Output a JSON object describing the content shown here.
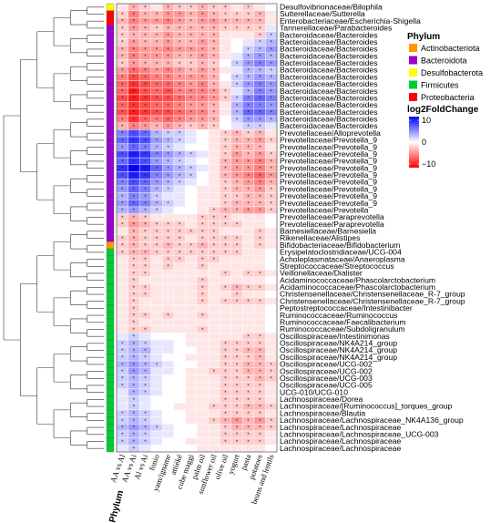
{
  "chart_data": {
    "type": "heatmap",
    "color_scale": {
      "min": -10,
      "mid": 0,
      "max": 10,
      "low_color": "#ff0000",
      "mid_color": "#ffffff",
      "high_color": "#0000ff"
    },
    "phylum_colors": {
      "Actinobacteriota": "#ff9900",
      "Bacteroidota": "#9900cc",
      "Desulfobacterota": "#ffff00",
      "Firmicutes": "#00cc33",
      "Proteobacteria": "#ff0000"
    },
    "columns": [
      "AA vs Al",
      "AA vs Ai",
      "Al vs Ai",
      "fonio",
      "yam/igname",
      "attiéké",
      "cube maggi",
      "palm oil",
      "sunflower oil",
      "olive oil",
      "yogurt",
      "pasta",
      "potatoes",
      "beans and lentils"
    ],
    "rows": [
      {
        "label": "Desulfovibrionaceae/Bilophila",
        "phylum": "Desulfobacterota"
      },
      {
        "label": "Sutterellaceae/Sutterella",
        "phylum": "Proteobacteria"
      },
      {
        "label": "Enterobacteriaceae/Escherichia-Shigella",
        "phylum": "Proteobacteria"
      },
      {
        "label": "Tannerellaceae/Parabacteroides",
        "phylum": "Bacteroidota"
      },
      {
        "label": "Bacteroidaceae/Bacteroides",
        "phylum": "Bacteroidota"
      },
      {
        "label": "Bacteroidaceae/Bacteroides",
        "phylum": "Bacteroidota"
      },
      {
        "label": "Bacteroidaceae/Bacteroides",
        "phylum": "Bacteroidota"
      },
      {
        "label": "Bacteroidaceae/Bacteroides",
        "phylum": "Bacteroidota"
      },
      {
        "label": "Bacteroidaceae/Bacteroides",
        "phylum": "Bacteroidota"
      },
      {
        "label": "Bacteroidaceae/Bacteroides",
        "phylum": "Bacteroidota"
      },
      {
        "label": "Bacteroidaceae/Bacteroides",
        "phylum": "Bacteroidota"
      },
      {
        "label": "Bacteroidaceae/Bacteroides",
        "phylum": "Bacteroidota"
      },
      {
        "label": "Bacteroidaceae/Bacteroides",
        "phylum": "Bacteroidota"
      },
      {
        "label": "Bacteroidaceae/Bacteroides",
        "phylum": "Bacteroidota"
      },
      {
        "label": "Bacteroidaceae/Bacteroides",
        "phylum": "Bacteroidota"
      },
      {
        "label": "Bacteroidaceae/Bacteroides",
        "phylum": "Bacteroidota"
      },
      {
        "label": "Bacteroidaceae/Bacteroides",
        "phylum": "Bacteroidota"
      },
      {
        "label": "Bacteroidaceae/Bacteroides",
        "phylum": "Bacteroidota"
      },
      {
        "label": "Prevotellaceae/Alloprevotella",
        "phylum": "Bacteroidota"
      },
      {
        "label": "Prevotellaceae/Prevotella_9",
        "phylum": "Bacteroidota"
      },
      {
        "label": "Prevotellaceae/Prevotella_9",
        "phylum": "Bacteroidota"
      },
      {
        "label": "Prevotellaceae/Prevotella_9",
        "phylum": "Bacteroidota"
      },
      {
        "label": "Prevotellaceae/Prevotella_9",
        "phylum": "Bacteroidota"
      },
      {
        "label": "Prevotellaceae/Prevotella_9",
        "phylum": "Bacteroidota"
      },
      {
        "label": "Prevotellaceae/Prevotella_9",
        "phylum": "Bacteroidota"
      },
      {
        "label": "Prevotellaceae/Prevotella_9",
        "phylum": "Bacteroidota"
      },
      {
        "label": "Prevotellaceae/Prevotella_9",
        "phylum": "Bacteroidota"
      },
      {
        "label": "Prevotellaceae/Prevotella_9",
        "phylum": "Bacteroidota"
      },
      {
        "label": "Prevotellaceae/Prevotella_9",
        "phylum": "Bacteroidota"
      },
      {
        "label": "Prevotellaceae/Prevotella",
        "phylum": "Bacteroidota"
      },
      {
        "label": "Prevotellaceae/Paraprevotella",
        "phylum": "Bacteroidota"
      },
      {
        "label": "Prevotellaceae/Paraprevotella",
        "phylum": "Bacteroidota"
      },
      {
        "label": "Barnesiellaceae/Barnesiella",
        "phylum": "Bacteroidota"
      },
      {
        "label": "Rikenellaceae/Alistipes",
        "phylum": "Bacteroidota"
      },
      {
        "label": "Bifidobacteriaceae/Bifidobacterium",
        "phylum": "Actinobacteriota"
      },
      {
        "label": "Erysipelatoclostridiaceae/UCG-004",
        "phylum": "Firmicutes"
      },
      {
        "label": "Acholeplasmataceae/Anaeroplasma",
        "phylum": "Firmicutes"
      },
      {
        "label": "Streptococcaceae/Streptococcus",
        "phylum": "Firmicutes"
      },
      {
        "label": "Veillonellaceae/Dialister",
        "phylum": "Firmicutes"
      },
      {
        "label": "Acidaminococcaceae/Phascolarctobacterium",
        "phylum": "Firmicutes"
      },
      {
        "label": "Acidaminococcaceae/Phascolarctobacterium",
        "phylum": "Firmicutes"
      },
      {
        "label": "Christensenellaceae/Christensenellaceae_R-7_group",
        "phylum": "Firmicutes"
      },
      {
        "label": "Christensenellaceae/Christensenellaceae_R-7_group",
        "phylum": "Firmicutes"
      },
      {
        "label": "Peptostreptococcaceae/Intestinibacter",
        "phylum": "Firmicutes"
      },
      {
        "label": "Ruminococcaceae/Ruminococcus",
        "phylum": "Firmicutes"
      },
      {
        "label": "Ruminococcaceae/Faecalibacterium",
        "phylum": "Firmicutes"
      },
      {
        "label": "Ruminococcaceae/Subdoligranulum",
        "phylum": "Firmicutes"
      },
      {
        "label": "Oscillospiraceae/Intestinimonas",
        "phylum": "Firmicutes"
      },
      {
        "label": "Oscillospiraceae/NK4A214_group",
        "phylum": "Firmicutes"
      },
      {
        "label": "Oscillospiraceae/NK4A214_group",
        "phylum": "Firmicutes"
      },
      {
        "label": "Oscillospiraceae/NK4A214_group",
        "phylum": "Firmicutes"
      },
      {
        "label": "Oscillospiraceae/UCG-002",
        "phylum": "Firmicutes"
      },
      {
        "label": "Oscillospiraceae/UCG-002",
        "phylum": "Firmicutes"
      },
      {
        "label": "Oscillospiraceae/UCG-003",
        "phylum": "Firmicutes"
      },
      {
        "label": "Oscillospiraceae/UCG-005",
        "phylum": "Firmicutes"
      },
      {
        "label": "UCG-010/UCG-010",
        "phylum": "Firmicutes"
      },
      {
        "label": "Lachnospiraceae/Dorea",
        "phylum": "Firmicutes"
      },
      {
        "label": "Lachnospiraceae/[Ruminococcus]_torques_group",
        "phylum": "Firmicutes"
      },
      {
        "label": "Lachnospiraceae/Blautia",
        "phylum": "Firmicutes"
      },
      {
        "label": "Lachnospiraceae/Lachnospiraceae_NK4A136_group",
        "phylum": "Firmicutes"
      },
      {
        "label": "Lachnospiraceae/Lachnospiraceae",
        "phylum": "Firmicutes"
      },
      {
        "label": "Lachnospiraceae/Lachnospiraceae_UCG-003",
        "phylum": "Firmicutes"
      },
      {
        "label": "Lachnospiraceae/Lachnospiraceae",
        "phylum": "Firmicutes"
      },
      {
        "label": "Lachnospiraceae/Lachnospiraceae",
        "phylum": "Firmicutes"
      }
    ],
    "values": [
      [
        -1,
        -3,
        -2,
        -1,
        -3,
        -2,
        -2,
        -3,
        -2,
        -2,
        -1,
        -2,
        -1,
        0
      ],
      [
        -2,
        -5,
        -3,
        -3,
        -4,
        -4,
        -3,
        -4,
        -3,
        -2,
        -2,
        -2,
        -3,
        -1
      ],
      [
        -3,
        -5,
        -4,
        -4,
        -5,
        -4,
        -3,
        -4,
        -4,
        -3,
        -3,
        -3,
        -3,
        -1
      ],
      [
        -2,
        -4,
        -3,
        -2,
        -3,
        -3,
        -3,
        -3,
        -3,
        -2,
        -2,
        -2,
        -2,
        1
      ],
      [
        -2,
        -3,
        -3,
        -3,
        -4,
        -3,
        -3,
        -3,
        -3,
        -1,
        -1,
        -1,
        -2,
        2
      ],
      [
        -2,
        -4,
        -3,
        -3,
        -4,
        -3,
        -3,
        -4,
        -3,
        -1,
        0,
        1,
        2,
        3
      ],
      [
        -3,
        -5,
        -4,
        -4,
        -5,
        -4,
        -4,
        -4,
        -3,
        -1,
        0,
        2,
        3,
        4
      ],
      [
        -3,
        -5,
        -4,
        -4,
        -4,
        -3,
        -3,
        -4,
        -3,
        -1,
        1,
        3,
        4,
        3
      ],
      [
        -2,
        -4,
        -3,
        -3,
        -3,
        -2,
        -2,
        -3,
        -2,
        0,
        2,
        4,
        5,
        4
      ],
      [
        -4,
        -6,
        -5,
        -4,
        -5,
        -4,
        -3,
        -4,
        -3,
        -1,
        1,
        3,
        3,
        2
      ],
      [
        -5,
        -7,
        -6,
        -5,
        -5,
        -4,
        -4,
        -4,
        -3,
        0,
        2,
        3,
        4,
        3
      ],
      [
        -6,
        -8,
        -7,
        -6,
        -6,
        -5,
        -4,
        -5,
        -3,
        -1,
        2,
        4,
        5,
        4
      ],
      [
        -6,
        -9,
        -7,
        -6,
        -7,
        -5,
        -5,
        -5,
        -4,
        -2,
        1,
        3,
        5,
        4
      ],
      [
        -7,
        -9,
        -8,
        -7,
        -7,
        -6,
        -5,
        -5,
        -4,
        -2,
        2,
        5,
        6,
        5
      ],
      [
        -6,
        -8,
        -7,
        -6,
        -6,
        -5,
        -4,
        -4,
        -3,
        -1,
        3,
        5,
        5,
        4
      ],
      [
        -7,
        -9,
        -8,
        -7,
        -7,
        -6,
        -5,
        -5,
        -3,
        -1,
        3,
        6,
        6,
        5
      ],
      [
        -5,
        -8,
        -6,
        -5,
        -6,
        -5,
        -4,
        -4,
        -3,
        0,
        2,
        4,
        4,
        3
      ],
      [
        -3,
        -5,
        -4,
        -3,
        -4,
        -3,
        -2,
        -3,
        -2,
        0,
        1,
        2,
        2,
        1
      ],
      [
        5,
        7,
        6,
        3,
        2,
        2,
        1,
        0,
        -1,
        -2,
        -3,
        -2,
        -3,
        -1
      ],
      [
        6,
        8,
        7,
        4,
        3,
        2,
        1,
        0,
        -1,
        -2,
        -3,
        -3,
        -4,
        -2
      ],
      [
        4,
        6,
        5,
        3,
        2,
        1,
        0,
        0,
        -1,
        -2,
        -3,
        -3,
        -3,
        -1
      ],
      [
        7,
        9,
        8,
        5,
        4,
        3,
        2,
        1,
        -1,
        -2,
        -4,
        -3,
        -4,
        -2
      ],
      [
        6,
        8,
        7,
        4,
        3,
        2,
        1,
        0,
        -1,
        -3,
        -4,
        -4,
        -5,
        -3
      ],
      [
        8,
        10,
        9,
        6,
        4,
        3,
        2,
        1,
        -1,
        -3,
        -4,
        -4,
        -5,
        -3
      ],
      [
        7,
        9,
        8,
        5,
        4,
        3,
        2,
        0,
        -1,
        -3,
        -4,
        -5,
        -6,
        -4
      ],
      [
        5,
        7,
        6,
        4,
        3,
        2,
        1,
        0,
        -1,
        -2,
        -3,
        -4,
        -5,
        -3
      ],
      [
        4,
        6,
        5,
        3,
        2,
        1,
        0,
        -1,
        -1,
        -2,
        -3,
        -3,
        -4,
        -2
      ],
      [
        3,
        5,
        4,
        2,
        1,
        1,
        0,
        -1,
        -1,
        -2,
        -2,
        -3,
        -3,
        -2
      ],
      [
        4,
        6,
        5,
        3,
        2,
        1,
        0,
        -1,
        -1,
        -2,
        -3,
        -3,
        -3,
        -2
      ],
      [
        3,
        4,
        3,
        2,
        1,
        0,
        0,
        -1,
        -2,
        -3,
        -3,
        -4,
        -4,
        -2
      ],
      [
        -2,
        -3,
        -2,
        -1,
        -1,
        -1,
        -1,
        -2,
        -2,
        -2,
        -1,
        -1,
        -1,
        0
      ],
      [
        -2,
        -4,
        -3,
        -2,
        -2,
        -2,
        -1,
        -2,
        -2,
        -2,
        -2,
        -1,
        -1,
        0
      ],
      [
        -1,
        -3,
        -2,
        -2,
        -2,
        -2,
        -2,
        -2,
        -2,
        -1,
        -1,
        -1,
        -2,
        -1
      ],
      [
        -2,
        -3,
        -2,
        -2,
        -2,
        -2,
        -1,
        -2,
        -2,
        -2,
        -2,
        -1,
        -2,
        -1
      ],
      [
        -2,
        -3,
        -2,
        -2,
        -3,
        -2,
        -2,
        -3,
        -2,
        -2,
        -2,
        -1,
        -2,
        -1
      ],
      [
        -2,
        -3,
        -3,
        -2,
        -2,
        -2,
        -2,
        -2,
        -2,
        -2,
        -2,
        -1,
        -1,
        0
      ],
      [
        -1,
        -2,
        -2,
        -1,
        -2,
        -2,
        -1,
        -2,
        -2,
        -1,
        -1,
        -1,
        -1,
        0
      ],
      [
        -1,
        -2,
        -2,
        -1,
        -2,
        -1,
        -1,
        -2,
        -1,
        -1,
        -1,
        -1,
        -1,
        0
      ],
      [
        -1,
        -2,
        -2,
        -1,
        -1,
        -1,
        -1,
        -1,
        -1,
        -2,
        -1,
        -2,
        -2,
        -1
      ],
      [
        -1,
        -2,
        -1,
        -1,
        -1,
        -1,
        -1,
        -2,
        -1,
        -1,
        -1,
        -1,
        -1,
        0
      ],
      [
        -1,
        -2,
        -2,
        -1,
        -1,
        -1,
        -1,
        -2,
        -1,
        -2,
        -3,
        -2,
        -2,
        -1
      ],
      [
        -1,
        -2,
        -2,
        -1,
        -1,
        -1,
        -1,
        -2,
        -1,
        -1,
        -2,
        -1,
        -1,
        0
      ],
      [
        -1,
        -2,
        -1,
        -1,
        -1,
        -1,
        -1,
        -2,
        -1,
        -2,
        -2,
        -2,
        -2,
        -1
      ],
      [
        -1,
        -2,
        -1,
        -1,
        -1,
        -1,
        -1,
        -1,
        -1,
        -1,
        -1,
        -1,
        -1,
        0
      ],
      [
        -1,
        -2,
        -2,
        -1,
        -2,
        -1,
        -1,
        -2,
        -1,
        -1,
        -1,
        -1,
        -1,
        0
      ],
      [
        -1,
        -2,
        -1,
        -1,
        -1,
        -1,
        -1,
        -1,
        -1,
        -1,
        -1,
        -1,
        -1,
        0
      ],
      [
        -1,
        -2,
        -2,
        -1,
        -1,
        -1,
        -1,
        -2,
        -1,
        -1,
        -1,
        -1,
        -1,
        0
      ],
      [
        1,
        2,
        1,
        0,
        0,
        0,
        -1,
        -1,
        -1,
        -1,
        -1,
        -2,
        -2,
        -1
      ],
      [
        2,
        3,
        2,
        1,
        1,
        0,
        -1,
        -1,
        -1,
        -2,
        -2,
        -2,
        -2,
        -1
      ],
      [
        2,
        3,
        3,
        1,
        1,
        0,
        0,
        -1,
        -1,
        -2,
        -2,
        -3,
        -3,
        -1
      ],
      [
        2,
        3,
        2,
        1,
        0,
        0,
        -1,
        -1,
        -1,
        -2,
        -2,
        -2,
        -3,
        -1
      ],
      [
        3,
        4,
        3,
        2,
        1,
        0,
        0,
        -1,
        -1,
        -2,
        -2,
        -3,
        -3,
        -2
      ],
      [
        2,
        4,
        3,
        1,
        1,
        0,
        -1,
        -1,
        -2,
        -2,
        -2,
        -3,
        -3,
        -2
      ],
      [
        2,
        3,
        2,
        1,
        0,
        0,
        -1,
        -1,
        -1,
        -2,
        -2,
        -2,
        -3,
        -2
      ],
      [
        2,
        3,
        2,
        1,
        0,
        0,
        -1,
        -1,
        -1,
        -2,
        -2,
        -2,
        -2,
        -1
      ],
      [
        1,
        3,
        2,
        1,
        0,
        0,
        -1,
        -1,
        -1,
        -2,
        -2,
        -2,
        -2,
        -1
      ],
      [
        1,
        2,
        1,
        0,
        0,
        0,
        -1,
        -1,
        -1,
        -2,
        -2,
        -2,
        -2,
        -1
      ],
      [
        1,
        2,
        1,
        0,
        0,
        -1,
        -1,
        -1,
        -2,
        -2,
        -2,
        -3,
        -3,
        -2
      ],
      [
        2,
        3,
        2,
        1,
        0,
        0,
        -1,
        -1,
        -1,
        -2,
        -2,
        -2,
        -2,
        -1
      ],
      [
        2,
        3,
        2,
        1,
        0,
        0,
        -1,
        -1,
        -2,
        -3,
        -4,
        -3,
        -4,
        -2
      ],
      [
        3,
        4,
        3,
        2,
        1,
        0,
        0,
        -1,
        -1,
        -2,
        -3,
        -3,
        -3,
        -2
      ],
      [
        2,
        3,
        2,
        1,
        1,
        0,
        0,
        -1,
        -1,
        -2,
        -2,
        -2,
        -2,
        -1
      ],
      [
        2,
        3,
        2,
        1,
        0,
        0,
        -1,
        -1,
        -1,
        -2,
        -2,
        -2,
        -2,
        -1
      ],
      [
        1,
        2,
        1,
        0,
        0,
        0,
        0,
        -1,
        -1,
        -1,
        -1,
        -1,
        -1,
        0
      ]
    ]
  },
  "legend": {
    "phylum_title": "Phylum",
    "phylum_items": [
      "Actinobacteriota",
      "Bacteroidota",
      "Desulfobacterota",
      "Firmicutes",
      "Proteobacteria"
    ],
    "scale_title": "log2FoldChange",
    "scale_ticks": [
      "10",
      "0",
      "−10"
    ]
  },
  "axis": {
    "phylum_label": "Phylum"
  }
}
